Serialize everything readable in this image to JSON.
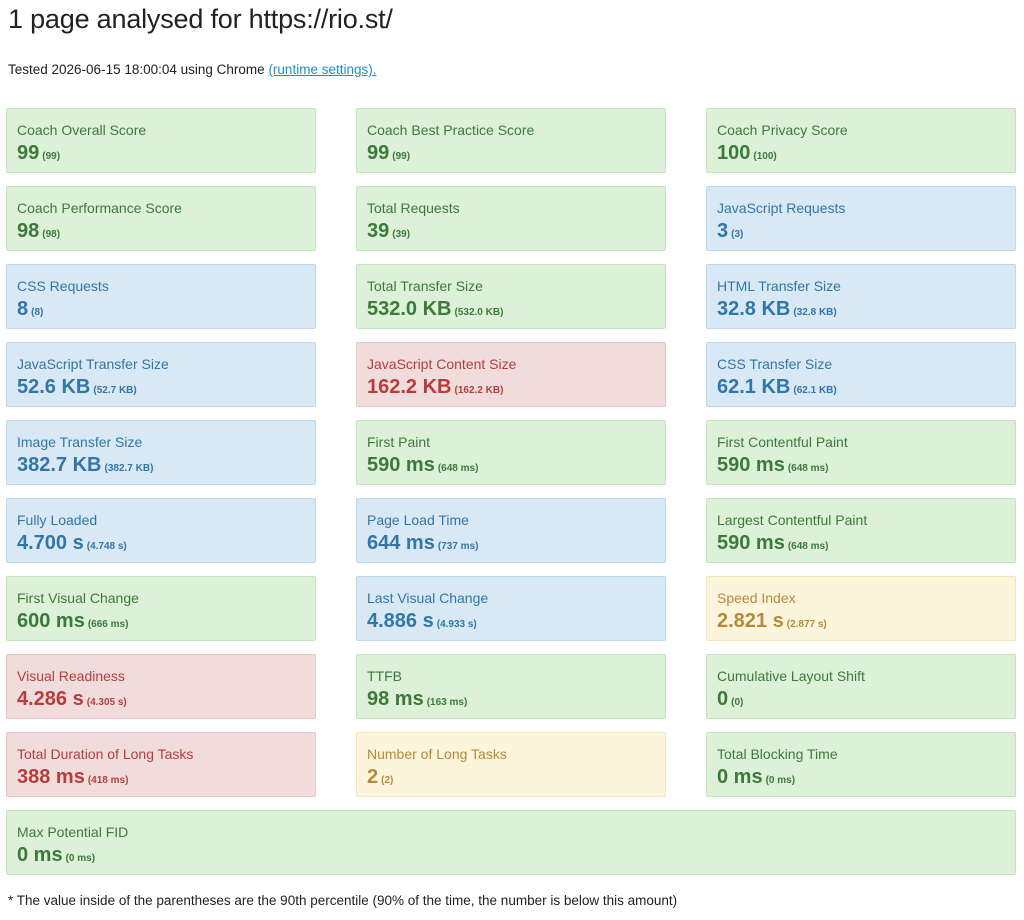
{
  "title": "1 page analysed for https://rio.st/",
  "tested": {
    "text": "Tested 2026-06-15 18:00:04 using Chrome ",
    "link": "(runtime settings)."
  },
  "metrics": [
    {
      "label": "Coach Overall Score",
      "value": "99",
      "p90": "(99)",
      "status": "good"
    },
    {
      "label": "Coach Best Practice Score",
      "value": "99",
      "p90": "(99)",
      "status": "good"
    },
    {
      "label": "Coach Privacy Score",
      "value": "100",
      "p90": "(100)",
      "status": "good"
    },
    {
      "label": "Coach Performance Score",
      "value": "98",
      "p90": "(98)",
      "status": "good"
    },
    {
      "label": "Total Requests",
      "value": "39",
      "p90": "(39)",
      "status": "good"
    },
    {
      "label": "JavaScript Requests",
      "value": "3",
      "p90": "(3)",
      "status": "info"
    },
    {
      "label": "CSS Requests",
      "value": "8",
      "p90": "(8)",
      "status": "info"
    },
    {
      "label": "Total Transfer Size",
      "value": "532.0 KB",
      "p90": "(532.0 KB)",
      "status": "good"
    },
    {
      "label": "HTML Transfer Size",
      "value": "32.8 KB",
      "p90": "(32.8 KB)",
      "status": "info"
    },
    {
      "label": "JavaScript Transfer Size",
      "value": "52.6 KB",
      "p90": "(52.7 KB)",
      "status": "info"
    },
    {
      "label": "JavaScript Content Size",
      "value": "162.2 KB",
      "p90": "(162.2 KB)",
      "status": "bad"
    },
    {
      "label": "CSS Transfer Size",
      "value": "62.1 KB",
      "p90": "(62.1 KB)",
      "status": "info"
    },
    {
      "label": "Image Transfer Size",
      "value": "382.7 KB",
      "p90": "(382.7 KB)",
      "status": "info"
    },
    {
      "label": "First Paint",
      "value": "590 ms",
      "p90": "(648 ms)",
      "status": "good"
    },
    {
      "label": "First Contentful Paint",
      "value": "590 ms",
      "p90": "(648 ms)",
      "status": "good"
    },
    {
      "label": "Fully Loaded",
      "value": "4.700 s",
      "p90": "(4.748 s)",
      "status": "info"
    },
    {
      "label": "Page Load Time",
      "value": "644 ms",
      "p90": "(737 ms)",
      "status": "info"
    },
    {
      "label": "Largest Contentful Paint",
      "value": "590 ms",
      "p90": "(648 ms)",
      "status": "good"
    },
    {
      "label": "First Visual Change",
      "value": "600 ms",
      "p90": "(666 ms)",
      "status": "good"
    },
    {
      "label": "Last Visual Change",
      "value": "4.886 s",
      "p90": "(4.933 s)",
      "status": "info"
    },
    {
      "label": "Speed Index",
      "value": "2.821 s",
      "p90": "(2.877 s)",
      "status": "warning"
    },
    {
      "label": "Visual Readiness",
      "value": "4.286 s",
      "p90": "(4.305 s)",
      "status": "bad"
    },
    {
      "label": "TTFB",
      "value": "98 ms",
      "p90": "(163 ms)",
      "status": "good"
    },
    {
      "label": "Cumulative Layout Shift",
      "value": "0",
      "p90": "(0)",
      "status": "good"
    },
    {
      "label": "Total Duration of Long Tasks",
      "value": "388 ms",
      "p90": "(418 ms)",
      "status": "bad"
    },
    {
      "label": "Number of Long Tasks",
      "value": "2",
      "p90": "(2)",
      "status": "warning"
    },
    {
      "label": "Total Blocking Time",
      "value": "0 ms",
      "p90": "(0 ms)",
      "status": "good"
    },
    {
      "label": "Max Potential FID",
      "value": "0 ms",
      "p90": "(0 ms)",
      "status": "good"
    }
  ],
  "footnote": "* The value inside of the parentheses are the 90th percentile (90% of the time, the number is below this amount)",
  "colors": {
    "good_bg": "#ddf0d8",
    "good_text": "#3c7a3c",
    "info_bg": "#d8e9f5",
    "info_text": "#3176a6",
    "bad_bg": "#f1dcdc",
    "bad_text": "#b73d3d",
    "warning_bg": "#fcf5dc",
    "warning_text": "#b6893b",
    "link": "#1a8fd0"
  }
}
